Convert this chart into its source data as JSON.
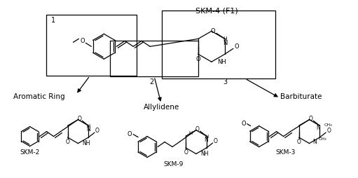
{
  "figsize": [
    5.11,
    2.54
  ],
  "dpi": 100,
  "bg": "#ffffff",
  "title": "SKM-4 (F1)",
  "labels": {
    "aromatic": "Aromatic Ring",
    "allylidene": "Allylidene",
    "barbiturate": "Barbiturate",
    "skm2": "SKM-2",
    "skm3": "SKM-3",
    "skm9": "SKM-9",
    "r1": "1",
    "r2": "2",
    "r3": "3"
  }
}
